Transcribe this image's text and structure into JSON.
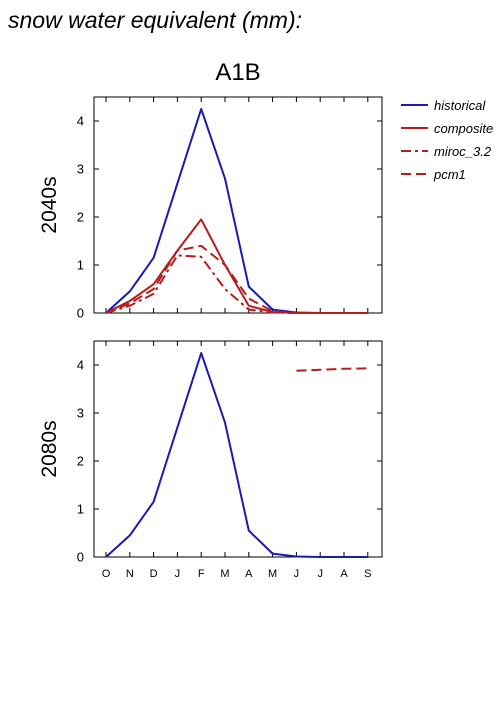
{
  "figure_title": "snow water equivalent (mm):",
  "panel_title": "A1B",
  "colors": {
    "historical": "#1a1ab4",
    "model": "#b41e1e"
  },
  "legend": [
    {
      "name": "historical",
      "dash": "solid",
      "color": "#1a1ab4"
    },
    {
      "name": "composite",
      "dash": "solid",
      "color": "#b41e1e"
    },
    {
      "name": "miroc_3.2",
      "dash": "dashdot",
      "color": "#b41e1e"
    },
    {
      "name": "pcm1",
      "dash": "dash",
      "color": "#b41e1e"
    }
  ],
  "chart_data": [
    {
      "type": "line",
      "row_label": "2040s",
      "categories": [
        "O",
        "N",
        "D",
        "J",
        "F",
        "M",
        "A",
        "M",
        "J",
        "J",
        "A",
        "S"
      ],
      "ylim": [
        0,
        4.5
      ],
      "yticks": [
        0,
        1,
        2,
        3,
        4
      ],
      "series": [
        {
          "name": "historical",
          "color": "#1a1ab4",
          "dash": "solid",
          "values": [
            0,
            0.45,
            1.15,
            2.7,
            4.25,
            2.8,
            0.55,
            0.07,
            0.01,
            0,
            0,
            0
          ]
        },
        {
          "name": "composite",
          "color": "#b41e1e",
          "dash": "solid",
          "values": [
            0,
            0.25,
            0.6,
            1.3,
            1.95,
            1.0,
            0.15,
            0.02,
            0,
            0,
            0,
            0
          ]
        },
        {
          "name": "miroc_3.2",
          "color": "#b41e1e",
          "dash": "dashdot",
          "values": [
            0,
            0.15,
            0.4,
            1.2,
            1.17,
            0.5,
            0.07,
            0.01,
            0,
            0,
            0,
            0
          ]
        },
        {
          "name": "pcm1",
          "color": "#b41e1e",
          "dash": "dash",
          "values": [
            0,
            0.2,
            0.5,
            1.3,
            1.4,
            1.0,
            0.3,
            0.04,
            0,
            0,
            0,
            0
          ]
        }
      ]
    },
    {
      "type": "line",
      "row_label": "2080s",
      "categories": [
        "O",
        "N",
        "D",
        "J",
        "F",
        "M",
        "A",
        "M",
        "J",
        "J",
        "A",
        "S"
      ],
      "ylim": [
        0,
        4.5
      ],
      "yticks": [
        0,
        1,
        2,
        3,
        4
      ],
      "series": [
        {
          "name": "historical",
          "color": "#1a1ab4",
          "dash": "solid",
          "values": [
            0,
            0.45,
            1.15,
            2.7,
            4.25,
            2.8,
            0.55,
            0.07,
            0.01,
            0,
            0,
            0
          ]
        },
        {
          "name": "pcm1",
          "color": "#b41e1e",
          "dash": "dash",
          "values": [
            null,
            null,
            null,
            null,
            null,
            null,
            null,
            null,
            3.88,
            3.9,
            3.92,
            3.93
          ]
        }
      ]
    }
  ]
}
